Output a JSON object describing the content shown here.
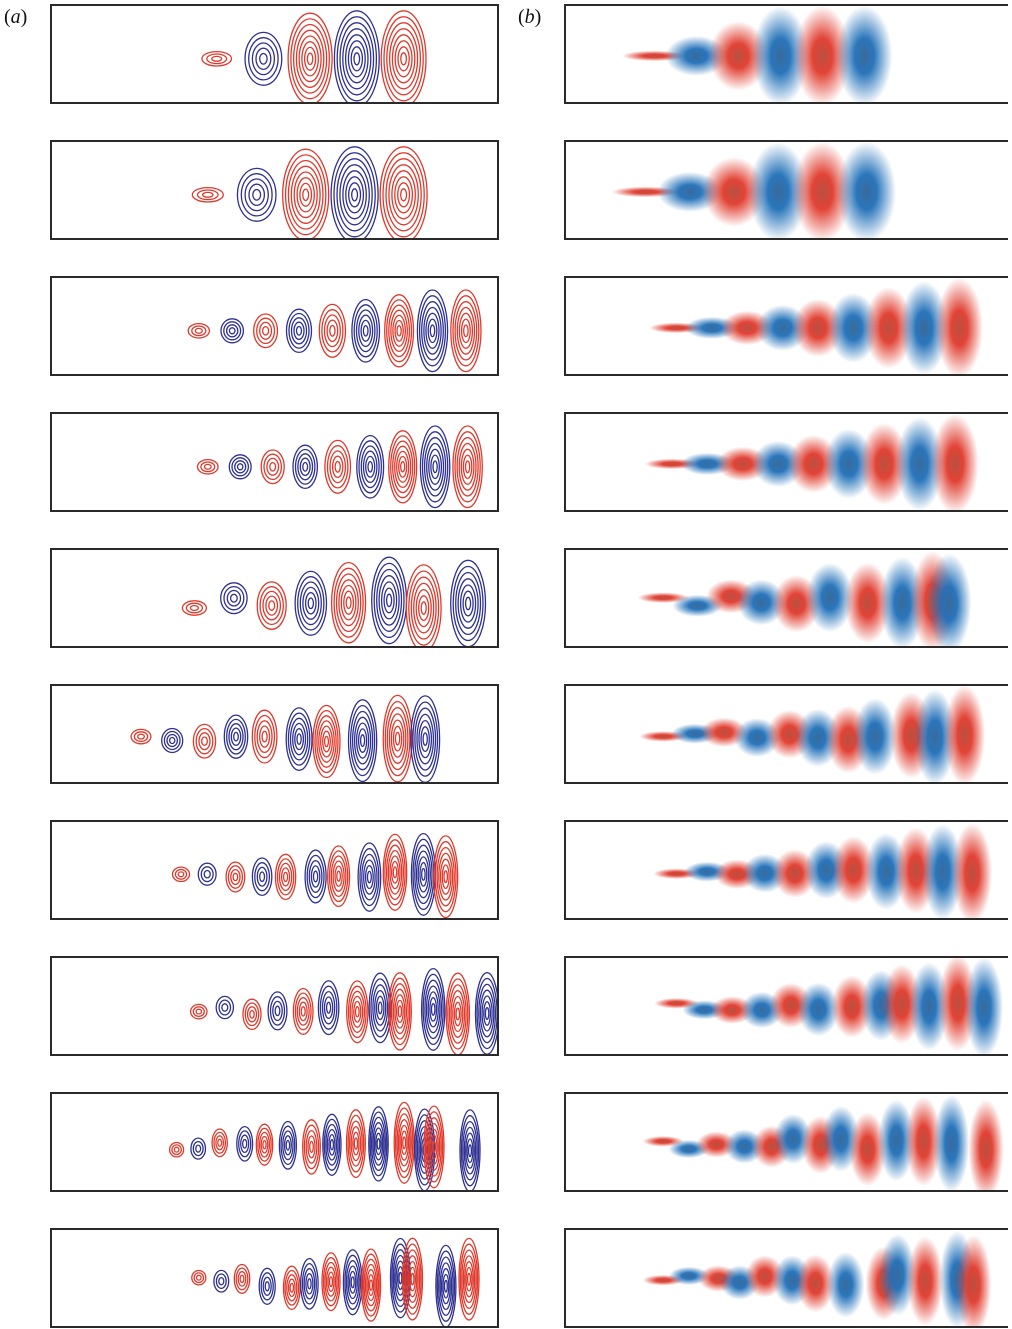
{
  "figure": {
    "panel_a": {
      "prefix": "(",
      "letter": "a",
      "suffix": ")"
    },
    "panel_b": {
      "prefix": "(",
      "letter": "b",
      "suffix": ")"
    },
    "colors": {
      "positive": "#e0392b",
      "negative": "#2e3192",
      "positive_fill": "#e03a2c",
      "negative_fill": "#1f6fb8",
      "frame": "#2a2a2a"
    },
    "rows": [
      {
        "a": {
          "start": 0.37,
          "n": 5,
          "wl": 0.105,
          "growth": 1.6,
          "amp_max": 1.0,
          "irregular": 0.0
        },
        "b": {
          "start": 0.2,
          "n": 6,
          "wl": 0.095,
          "growth": 1.4,
          "irregular": 0.0
        }
      },
      {
        "a": {
          "start": 0.35,
          "n": 5,
          "wl": 0.11,
          "growth": 1.6,
          "amp_max": 1.0,
          "irregular": 0.0
        },
        "b": {
          "start": 0.18,
          "n": 6,
          "wl": 0.1,
          "growth": 1.4,
          "irregular": 0.0
        }
      },
      {
        "a": {
          "start": 0.33,
          "n": 9,
          "wl": 0.075,
          "growth": 0.8,
          "amp_max": 0.85,
          "irregular": 0.0
        },
        "b": {
          "start": 0.25,
          "n": 9,
          "wl": 0.08,
          "growth": 0.9,
          "irregular": 0.0
        }
      },
      {
        "a": {
          "start": 0.35,
          "n": 9,
          "wl": 0.073,
          "growth": 0.8,
          "amp_max": 0.85,
          "irregular": 0.0
        },
        "b": {
          "start": 0.24,
          "n": 9,
          "wl": 0.08,
          "growth": 0.9,
          "irregular": 0.0
        }
      },
      {
        "a": {
          "start": 0.32,
          "n": 8,
          "wl": 0.085,
          "growth": 1.2,
          "amp_max": 0.9,
          "irregular": 0.6
        },
        "b": {
          "start": 0.22,
          "n": 10,
          "wl": 0.075,
          "growth": 1.0,
          "irregular": 0.6
        }
      },
      {
        "a": {
          "start": 0.2,
          "n": 10,
          "wl": 0.07,
          "growth": 0.9,
          "amp_max": 0.9,
          "irregular": 0.4
        },
        "b": {
          "start": 0.22,
          "n": 11,
          "wl": 0.07,
          "growth": 0.9,
          "irregular": 0.4
        }
      },
      {
        "a": {
          "start": 0.29,
          "n": 11,
          "wl": 0.06,
          "growth": 0.8,
          "amp_max": 0.85,
          "irregular": 0.3
        },
        "b": {
          "start": 0.25,
          "n": 11,
          "wl": 0.068,
          "growth": 0.9,
          "irregular": 0.3
        }
      },
      {
        "a": {
          "start": 0.33,
          "n": 12,
          "wl": 0.058,
          "growth": 0.9,
          "amp_max": 0.85,
          "irregular": 0.4
        },
        "b": {
          "start": 0.25,
          "n": 12,
          "wl": 0.065,
          "growth": 0.9,
          "irregular": 0.5
        }
      },
      {
        "a": {
          "start": 0.28,
          "n": 14,
          "wl": 0.05,
          "growth": 0.9,
          "amp_max": 0.85,
          "irregular": 0.5
        },
        "b": {
          "start": 0.22,
          "n": 13,
          "wl": 0.06,
          "growth": 0.9,
          "irregular": 0.6
        }
      },
      {
        "a": {
          "start": 0.33,
          "n": 13,
          "wl": 0.05,
          "growth": 0.9,
          "amp_max": 0.85,
          "irregular": 0.6
        },
        "b": {
          "start": 0.22,
          "n": 13,
          "wl": 0.06,
          "growth": 0.9,
          "irregular": 0.6
        }
      }
    ]
  }
}
